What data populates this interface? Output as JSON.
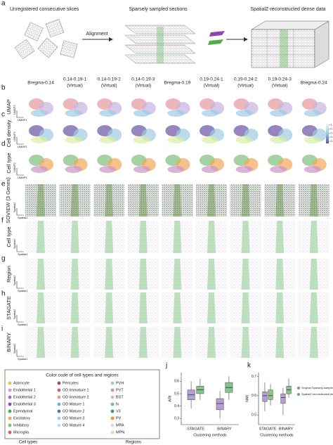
{
  "panel_labels": [
    "a",
    "b",
    "c",
    "d",
    "e",
    "f",
    "g",
    "h",
    "i",
    "j",
    "k"
  ],
  "header": {
    "step1": "Unregistered consecutive slices",
    "alignment": "Alignment",
    "step2": "Sparsely sampled sections",
    "step3": "SpatialZ-reconstructed dense data"
  },
  "columns": [
    {
      "name": "Bregma-0.14"
    },
    {
      "name": "0.14-0.19-1",
      "note": "(Virtual)"
    },
    {
      "name": "0.14-0.19-2",
      "note": "(Virtual)"
    },
    {
      "name": "0.14-0.19-3",
      "note": "(Virtual)"
    },
    {
      "name": "Bregma-0.19"
    },
    {
      "name": "0.19-0.24-1",
      "note": "(Virtual)"
    },
    {
      "name": "0.19-0.24-2",
      "note": "(Virtual)"
    },
    {
      "name": "0.19-0.24-3",
      "note": "(Virtual)"
    },
    {
      "name": "Bregma-0.24"
    }
  ],
  "rows": [
    "UMAP",
    "Cell density",
    "Cell type",
    "SOVIEW (3 Genes)",
    "Cell type",
    "Region",
    "STAGATE",
    "BINARY"
  ],
  "umap_axes": [
    "UMAP1",
    "UMAP2"
  ],
  "spatial_axes": [
    "Spatial1",
    "Spatial2"
  ],
  "colorbar": {
    "ticks": [
      0.2,
      0.4,
      0.6,
      0.8,
      {
        "value": 1,
        "label": "1.0"
      }
    ],
    "lim": [
      0.1,
      1.05
    ]
  },
  "legend": {
    "title": "Color code of cell types and regions",
    "cell_types_label": "Cell types",
    "regions_label": "Regions",
    "cell_types": [
      {
        "name": "Astrocyte",
        "color": "#e8c53a"
      },
      {
        "name": "Endothelial 1",
        "color": "#c9a0dc"
      },
      {
        "name": "Endothelial 2",
        "color": "#9b6fc8"
      },
      {
        "name": "Endothelial 3",
        "color": "#7d4fb0"
      },
      {
        "name": "Ependymal",
        "color": "#4cb04a"
      },
      {
        "name": "Excitatory",
        "color": "#f2a65a"
      },
      {
        "name": "Inhibitory",
        "color": "#7fbf7b"
      },
      {
        "name": "Microglia",
        "color": "#e05c5c"
      },
      {
        "name": "Pericytes",
        "color": "#8c564b"
      },
      {
        "name": "OD Immature 1",
        "color": "#d6616b"
      },
      {
        "name": "OD Immature 2",
        "color": "#e7969c"
      },
      {
        "name": "OD Mature 1",
        "color": "#6baed6"
      },
      {
        "name": "OD Mature 2",
        "color": "#3182bd"
      },
      {
        "name": "OD Mature 3",
        "color": "#9ecae1"
      },
      {
        "name": "OD Mature 4",
        "color": "#c6dbef"
      }
    ],
    "regions": [
      {
        "name": "PVH",
        "color": "#9ecae1"
      },
      {
        "name": "PVT",
        "color": "#c994c7"
      },
      {
        "name": "BST",
        "color": "#bcbddc"
      },
      {
        "name": "fx",
        "color": "#74c476"
      },
      {
        "name": "V3",
        "color": "#31a354"
      },
      {
        "name": "PV",
        "color": "#fd8d3c"
      },
      {
        "name": "MPA",
        "color": "#d9d9d9"
      },
      {
        "name": "MPN",
        "color": "#fdd0a2"
      }
    ]
  },
  "chart_data": [
    {
      "type": "box",
      "ylabel": "ARI",
      "xlabel": "Clustering methods",
      "categories": [
        "STAGATE",
        "BINARY"
      ],
      "ylim": [
        0.25,
        0.67
      ],
      "yticks": [
        0.3,
        0.4,
        0.5,
        0.6
      ],
      "series": [
        {
          "color": "#9a7fc4",
          "min": [
            0.38,
            0.3
          ],
          "q1": [
            0.45,
            0.37
          ],
          "median": [
            0.49,
            0.42
          ],
          "q3": [
            0.53,
            0.46
          ],
          "max": [
            0.6,
            0.52
          ]
        },
        {
          "color": "#5fb06a",
          "min": [
            0.45,
            0.45
          ],
          "q1": [
            0.5,
            0.51
          ],
          "median": [
            0.53,
            0.55
          ],
          "q3": [
            0.56,
            0.59
          ],
          "max": [
            0.62,
            0.64
          ]
        }
      ]
    },
    {
      "type": "box",
      "ylabel": "NMI",
      "xlabel": "Clustering methods",
      "categories": [
        "STAGATE",
        "BINARY"
      ],
      "ylim": [
        0.45,
        0.72
      ],
      "yticks": [
        0.5,
        0.6,
        0.7
      ],
      "legend": "right",
      "series": [
        {
          "name": "Original Sparsely-sampled data",
          "color": "#9a7fc4",
          "min": [
            0.52,
            0.5
          ],
          "q1": [
            0.57,
            0.56
          ],
          "median": [
            0.6,
            0.59
          ],
          "q3": [
            0.62,
            0.61
          ],
          "max": [
            0.67,
            0.64
          ]
        },
        {
          "name": "SpatialZ reconstructed dense data",
          "color": "#5fb06a",
          "min": [
            0.55,
            0.59
          ],
          "q1": [
            0.58,
            0.61
          ],
          "median": [
            0.6,
            0.63
          ],
          "q3": [
            0.63,
            0.65
          ],
          "max": [
            0.66,
            0.69
          ]
        }
      ]
    }
  ]
}
